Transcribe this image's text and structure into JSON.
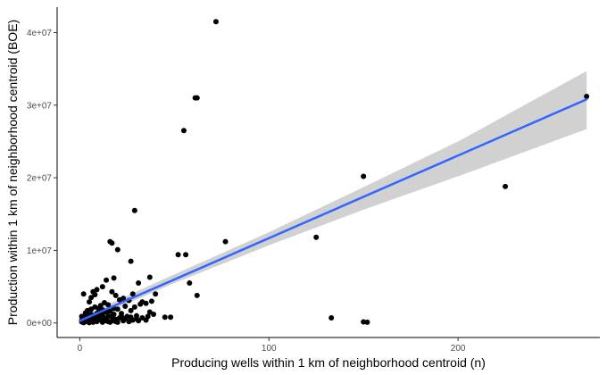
{
  "chart_data": {
    "type": "scatter",
    "xlabel": "Producing wells within 1 km of neighborhood centroid (n)",
    "ylabel": "Production within 1 km of neighborhood centroid (BOE)",
    "xlim": [
      -12,
      275
    ],
    "ylim": [
      -2000000,
      43500000
    ],
    "x_ticks": [
      {
        "value": 0,
        "label": "0"
      },
      {
        "value": 100,
        "label": "100"
      },
      {
        "value": 200,
        "label": "200"
      }
    ],
    "y_ticks": [
      {
        "value": 0,
        "label": "0e+00"
      },
      {
        "value": 10000000,
        "label": "1e+07"
      },
      {
        "value": 20000000,
        "label": "2e+07"
      },
      {
        "value": 30000000,
        "label": "3e+07"
      },
      {
        "value": 40000000,
        "label": "4e+07"
      }
    ],
    "grid": false,
    "legend": "none",
    "colors": {
      "points": "#000000",
      "fit_line": "#3366FF",
      "ribbon": "#cccccc"
    },
    "fit": {
      "method": "linear",
      "line": [
        [
          0,
          300000
        ],
        [
          268,
          30800000
        ]
      ],
      "ribbon": [
        {
          "x": 0,
          "lo": -200000,
          "hi": 800000
        },
        {
          "x": 50,
          "lo": 5500000,
          "hi": 6700000
        },
        {
          "x": 100,
          "lo": 10700000,
          "hi": 12500000
        },
        {
          "x": 150,
          "lo": 15600000,
          "hi": 18700000
        },
        {
          "x": 200,
          "lo": 20200000,
          "hi": 25000000
        },
        {
          "x": 268,
          "lo": 26700000,
          "hi": 34700000
        }
      ]
    },
    "points": [
      [
        72,
        41500000
      ],
      [
        61,
        31000000
      ],
      [
        62,
        31000000
      ],
      [
        55,
        26500000
      ],
      [
        268,
        31200000
      ],
      [
        150,
        20200000
      ],
      [
        225,
        18800000
      ],
      [
        29,
        15500000
      ],
      [
        16,
        11200000
      ],
      [
        17,
        11000000
      ],
      [
        77,
        11200000
      ],
      [
        125,
        11800000
      ],
      [
        20,
        10100000
      ],
      [
        52,
        9400000
      ],
      [
        56,
        9400000
      ],
      [
        27,
        8500000
      ],
      [
        37,
        6300000
      ],
      [
        14,
        5900000
      ],
      [
        18,
        6200000
      ],
      [
        31,
        5500000
      ],
      [
        58,
        5500000
      ],
      [
        12,
        5000000
      ],
      [
        9,
        4600000
      ],
      [
        7,
        4300000
      ],
      [
        8,
        3900000
      ],
      [
        2,
        4000000
      ],
      [
        6,
        3500000
      ],
      [
        17,
        4300000
      ],
      [
        19,
        3800000
      ],
      [
        23,
        3400000
      ],
      [
        28,
        4000000
      ],
      [
        40,
        4000000
      ],
      [
        62,
        3800000
      ],
      [
        21,
        3200000
      ],
      [
        26,
        3100000
      ],
      [
        33,
        2900000
      ],
      [
        38,
        3000000
      ],
      [
        35,
        2700000
      ],
      [
        32,
        2600000
      ],
      [
        13,
        2800000
      ],
      [
        5,
        2900000
      ],
      [
        15,
        2500000
      ],
      [
        24,
        2300000
      ],
      [
        29,
        2200000
      ],
      [
        11,
        2400000
      ],
      [
        18,
        2000000
      ],
      [
        20,
        1900000
      ],
      [
        27,
        1700000
      ],
      [
        37,
        1500000
      ],
      [
        45,
        800000
      ],
      [
        48,
        800000
      ],
      [
        133,
        700000
      ],
      [
        150,
        150000
      ],
      [
        152,
        100000
      ],
      [
        35,
        400000
      ],
      [
        30,
        600000
      ],
      [
        25,
        900000
      ],
      [
        22,
        1300000
      ],
      [
        16,
        1600000
      ],
      [
        12,
        1800000
      ],
      [
        10,
        2000000
      ],
      [
        8,
        2200000
      ],
      [
        6,
        1900000
      ],
      [
        4,
        1700000
      ],
      [
        3,
        1400000
      ],
      [
        1,
        900000
      ],
      [
        2,
        600000
      ],
      [
        5,
        1100000
      ],
      [
        7,
        800000
      ],
      [
        9,
        1300000
      ],
      [
        11,
        1100000
      ],
      [
        13,
        700000
      ],
      [
        14,
        1500000
      ],
      [
        17,
        900000
      ],
      [
        19,
        500000
      ],
      [
        21,
        700000
      ],
      [
        23,
        300000
      ],
      [
        26,
        200000
      ],
      [
        28,
        400000
      ],
      [
        31,
        300000
      ],
      [
        3,
        200000
      ],
      [
        4,
        400000
      ],
      [
        5,
        600000
      ],
      [
        6,
        300000
      ],
      [
        7,
        100000
      ],
      [
        8,
        500000
      ],
      [
        9,
        200000
      ],
      [
        10,
        700000
      ],
      [
        11,
        400000
      ],
      [
        12,
        100000
      ],
      [
        13,
        300000
      ],
      [
        14,
        500000
      ],
      [
        15,
        200000
      ],
      [
        16,
        100000
      ],
      [
        17,
        300000
      ],
      [
        18,
        500000
      ],
      [
        19,
        200000
      ],
      [
        20,
        100000
      ],
      [
        2,
        50000
      ],
      [
        1,
        150000
      ],
      [
        3,
        700000
      ],
      [
        4,
        900000
      ],
      [
        6,
        1200000
      ],
      [
        8,
        1000000
      ],
      [
        10,
        1500000
      ],
      [
        12,
        1200000
      ],
      [
        15,
        900000
      ],
      [
        18,
        1200000
      ],
      [
        22,
        900000
      ],
      [
        24,
        600000
      ],
      [
        27,
        800000
      ],
      [
        30,
        1000000
      ],
      [
        33,
        700000
      ],
      [
        36,
        900000
      ],
      [
        39,
        1200000
      ],
      [
        1,
        400000
      ],
      [
        2,
        800000
      ],
      [
        3,
        1000000
      ],
      [
        4,
        200000
      ],
      [
        5,
        50000
      ]
    ]
  }
}
